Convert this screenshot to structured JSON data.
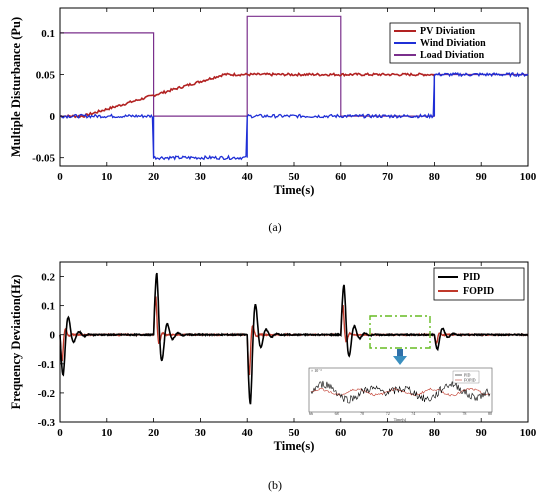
{
  "chart_data": [
    {
      "type": "line",
      "panel_label": "(a)",
      "xlabel": "Time(s)",
      "ylabel": "Multiple Disturbance (Pu)",
      "xlim": [
        0,
        100
      ],
      "ylim": [
        -0.06,
        0.13
      ],
      "xticks": [
        "0",
        "10",
        "20",
        "30",
        "40",
        "50",
        "60",
        "70",
        "80",
        "90",
        "100"
      ],
      "yticks": [
        "-0.05",
        "0",
        "0.05",
        "0.1"
      ],
      "legend_position": "top-right",
      "colors": {
        "pv": "#b22222",
        "wind": "#1f2fd6",
        "load": "#7a2f8c"
      },
      "series": [
        {
          "name": "PV Diviation",
          "x": [
            0,
            5,
            35,
            100
          ],
          "y": [
            0,
            0,
            0.05,
            0.05
          ]
        },
        {
          "name": "Wind Diviation",
          "x": [
            0,
            20,
            20,
            40,
            40,
            80,
            80,
            100
          ],
          "y": [
            0,
            0,
            -0.05,
            -0.05,
            0,
            0,
            0.05,
            0.05
          ]
        },
        {
          "name": "Load Diviation",
          "x": [
            0,
            20,
            20,
            40,
            40,
            60,
            60,
            80,
            80,
            100
          ],
          "y": [
            0.1,
            0.1,
            0,
            0,
            0.12,
            0.12,
            0,
            0,
            0.05,
            0.05
          ]
        }
      ]
    },
    {
      "type": "line",
      "panel_label": "(b)",
      "xlabel": "Time(s)",
      "ylabel": "Frequency Deviation(Hz)",
      "xlim": [
        0,
        100
      ],
      "ylim": [
        -0.3,
        0.25
      ],
      "xticks": [
        "0",
        "10",
        "20",
        "30",
        "40",
        "50",
        "60",
        "70",
        "80",
        "90",
        "100"
      ],
      "yticks": [
        "-0.3",
        "-0.2",
        "-0.1",
        "0",
        "0.1",
        "0.2"
      ],
      "legend_position": "top-right",
      "colors": {
        "pid": "#000000",
        "fopid": "#c0392b"
      },
      "events": [
        {
          "t": 0,
          "pid": -0.14,
          "fopid": -0.09,
          "dir": -1
        },
        {
          "t": 20,
          "pid": 0.21,
          "fopid": 0.13,
          "dir": 1
        },
        {
          "t": 40,
          "pid": -0.24,
          "fopid": -0.14,
          "dir": -1
        },
        {
          "t": 60,
          "pid": 0.17,
          "fopid": 0.1,
          "dir": 1
        },
        {
          "t": 80,
          "pid": -0.05,
          "fopid": -0.03,
          "dir": -1
        }
      ],
      "series": [
        {
          "name": "PID"
        },
        {
          "name": "FOPID"
        }
      ],
      "inset": {
        "x_range": [
          66,
          80
        ],
        "y_range": [
          -0.02,
          0.02
        ],
        "exponent_label": "× 10⁻³",
        "legend": [
          "PID",
          "FOPID"
        ],
        "xlabel": "Time(s)"
      }
    }
  ]
}
